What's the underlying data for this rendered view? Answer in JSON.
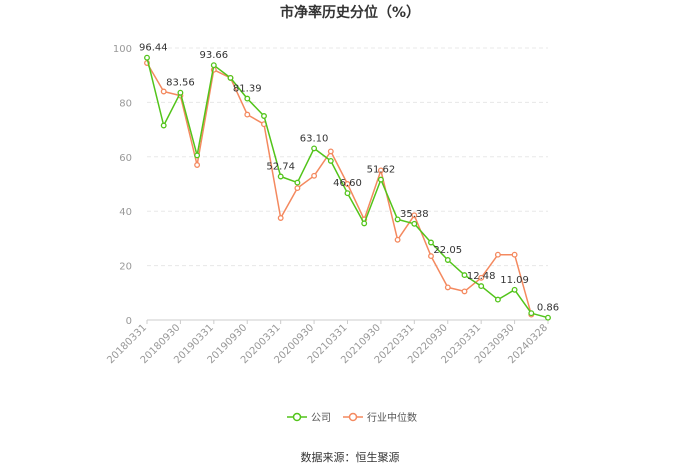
{
  "chart_data": {
    "type": "line",
    "title": "市净率历史分位（%）",
    "source": "数据来源：恒生聚源",
    "xlabel": "",
    "ylabel": "",
    "ylim": [
      0,
      100
    ],
    "y_ticks": [
      0,
      20,
      40,
      60,
      80,
      100
    ],
    "grid": true,
    "legend_position": "bottom",
    "x_tick_labels": [
      "20180331",
      "20180930",
      "20190331",
      "20190930",
      "20200331",
      "20200930",
      "20210331",
      "20210930",
      "20220331",
      "20220930",
      "20230331",
      "20230930",
      "20240328"
    ],
    "x": [
      "20180331",
      "20180630",
      "20180930",
      "20181231",
      "20190331",
      "20190630",
      "20190930",
      "20191231",
      "20200331",
      "20200630",
      "20200930",
      "20201231",
      "20210331",
      "20210630",
      "20210930",
      "20211231",
      "20220331",
      "20220630",
      "20220930",
      "20221231",
      "20230331",
      "20230630",
      "20230930",
      "20231231",
      "20240328"
    ],
    "series": [
      {
        "name": "公司",
        "color": "#52c41a",
        "values": [
          96.44,
          71.5,
          83.56,
          60.5,
          93.66,
          89.0,
          81.39,
          75.0,
          52.74,
          50.5,
          63.1,
          58.5,
          46.6,
          35.5,
          51.62,
          37.0,
          35.38,
          28.5,
          22.05,
          16.5,
          12.48,
          7.5,
          11.09,
          2.5,
          0.86
        ],
        "labels": {
          "0": "96.44",
          "2": "83.56",
          "4": "93.66",
          "6": "81.39",
          "8": "52.74",
          "10": "63.10",
          "12": "46.60",
          "14": "51.62",
          "16": "35.38",
          "18": "22.05",
          "20": "12.48",
          "22": "11.09",
          "24": "0.86"
        }
      },
      {
        "name": "行业中位数",
        "color": "#f4895f",
        "values": [
          94.5,
          84.0,
          82.5,
          57.0,
          92.0,
          89.0,
          75.5,
          72.0,
          37.5,
          48.5,
          53.0,
          62.0,
          50.0,
          37.0,
          55.0,
          29.5,
          38.5,
          23.5,
          12.0,
          10.5,
          15.5,
          24.0,
          24.0,
          2.0,
          null
        ]
      }
    ]
  }
}
